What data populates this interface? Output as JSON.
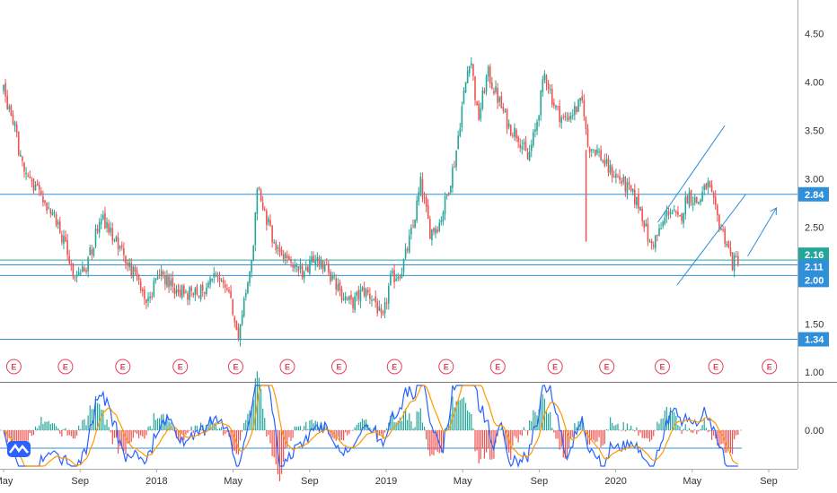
{
  "chart_data": [
    {
      "type": "candlestick",
      "title": "",
      "y_axis_position": "right",
      "y_ticks": [
        "4.50",
        "4.00",
        "3.50",
        "3.00",
        "2.50",
        "1.50",
        "1.00"
      ],
      "ylim": [
        0.9,
        4.85
      ],
      "x_ticks": [
        {
          "label": "May",
          "t": 0
        },
        {
          "label": "Sep",
          "t": 4
        },
        {
          "label": "2018",
          "t": 8
        },
        {
          "label": "May",
          "t": 12
        },
        {
          "label": "Sep",
          "t": 16
        },
        {
          "label": "2019",
          "t": 20
        },
        {
          "label": "May",
          "t": 24
        },
        {
          "label": "Sep",
          "t": 28
        },
        {
          "label": "2020",
          "t": 32
        },
        {
          "label": "May",
          "t": 36
        },
        {
          "label": "Sep",
          "t": 40
        }
      ],
      "price_path": [
        [
          0,
          3.9
        ],
        [
          0.5,
          3.6
        ],
        [
          1,
          3.1
        ],
        [
          1.6,
          2.9
        ],
        [
          2.2,
          2.75
        ],
        [
          2.8,
          2.55
        ],
        [
          3.3,
          2.25
        ],
        [
          3.8,
          1.95
        ],
        [
          4.3,
          2.1
        ],
        [
          4.8,
          2.4
        ],
        [
          5.1,
          2.65
        ],
        [
          5.5,
          2.45
        ],
        [
          6.0,
          2.3
        ],
        [
          6.6,
          2.1
        ],
        [
          7.2,
          1.85
        ],
        [
          7.6,
          1.75
        ],
        [
          8.0,
          2.0
        ],
        [
          8.5,
          1.95
        ],
        [
          9.2,
          1.85
        ],
        [
          9.8,
          1.8
        ],
        [
          10.4,
          1.85
        ],
        [
          11.0,
          1.95
        ],
        [
          11.6,
          1.9
        ],
        [
          12.0,
          1.65
        ],
        [
          12.3,
          1.32
        ],
        [
          12.6,
          1.75
        ],
        [
          13.0,
          2.2
        ],
        [
          13.3,
          2.95
        ],
        [
          13.6,
          2.7
        ],
        [
          14.0,
          2.4
        ],
        [
          14.6,
          2.2
        ],
        [
          15.2,
          2.1
        ],
        [
          15.8,
          2.0
        ],
        [
          16.3,
          2.2
        ],
        [
          16.8,
          2.1
        ],
        [
          17.5,
          1.85
        ],
        [
          18.2,
          1.7
        ],
        [
          18.8,
          1.85
        ],
        [
          19.4,
          1.75
        ],
        [
          19.8,
          1.5
        ],
        [
          20.2,
          1.95
        ],
        [
          20.8,
          2.05
        ],
        [
          21.4,
          2.5
        ],
        [
          21.8,
          2.95
        ],
        [
          22.3,
          2.45
        ],
        [
          22.8,
          2.55
        ],
        [
          23.2,
          2.85
        ],
        [
          23.6,
          3.2
        ],
        [
          24.0,
          3.8
        ],
        [
          24.4,
          4.3
        ],
        [
          24.8,
          3.6
        ],
        [
          25.3,
          4.1
        ],
        [
          25.8,
          3.85
        ],
        [
          26.4,
          3.55
        ],
        [
          26.9,
          3.45
        ],
        [
          27.4,
          3.2
        ],
        [
          27.8,
          3.5
        ],
        [
          28.3,
          4.1
        ],
        [
          28.8,
          3.75
        ],
        [
          29.3,
          3.6
        ],
        [
          29.8,
          3.7
        ],
        [
          30.3,
          3.8
        ],
        [
          30.5,
          3.35
        ],
        [
          31.0,
          3.3
        ],
        [
          31.6,
          3.1
        ],
        [
          32.2,
          3.0
        ],
        [
          32.8,
          2.85
        ],
        [
          33.3,
          2.7
        ],
        [
          33.8,
          2.3
        ],
        [
          34.3,
          2.45
        ],
        [
          34.8,
          2.7
        ],
        [
          35.3,
          2.55
        ],
        [
          35.8,
          2.85
        ],
        [
          36.3,
          2.75
        ],
        [
          36.8,
          2.95
        ],
        [
          37.3,
          2.6
        ],
        [
          37.8,
          2.35
        ],
        [
          38.1,
          2.12
        ],
        [
          38.4,
          2.18
        ]
      ],
      "horizontal_levels": [
        {
          "value": 2.84,
          "label": "2.84",
          "color": "#2f8fd8"
        },
        {
          "value": 2.16,
          "label": "2.16",
          "color": "#26a69a"
        },
        {
          "value": 2.11,
          "label": "2.11",
          "color": "#2f8fd8"
        },
        {
          "value": 2.0,
          "label": "2.00",
          "color": "#2f8fd8"
        },
        {
          "value": 1.34,
          "label": "1.34",
          "color": "#2f8fd8"
        }
      ],
      "channel_lines": [
        {
          "from": [
            34.2,
            2.55
          ],
          "to": [
            37.7,
            3.55
          ]
        },
        {
          "from": [
            35.2,
            1.9
          ],
          "to": [
            38.8,
            2.84
          ]
        }
      ],
      "arrow": {
        "from": [
          38.9,
          2.2
        ],
        "to": [
          40.4,
          2.7
        ]
      },
      "earnings_marker_label": "E",
      "earnings_t": [
        0.3,
        3.0,
        6.0,
        9.0,
        11.9,
        14.6,
        17.3,
        20.2,
        22.9,
        25.6,
        28.6,
        31.3,
        34.2,
        37.0,
        39.8
      ],
      "up_color": "#26a69a",
      "down_color": "#ef5350",
      "level_color": "#2f8fd8",
      "earnings_color": "#e0435a"
    },
    {
      "type": "line",
      "name": "oscillator",
      "y_ticks": [
        "0.00"
      ],
      "series_colors": [
        "#2962ff",
        "#ff9800"
      ],
      "histogram_colors": [
        "#26a69a",
        "#ef5350"
      ]
    }
  ]
}
